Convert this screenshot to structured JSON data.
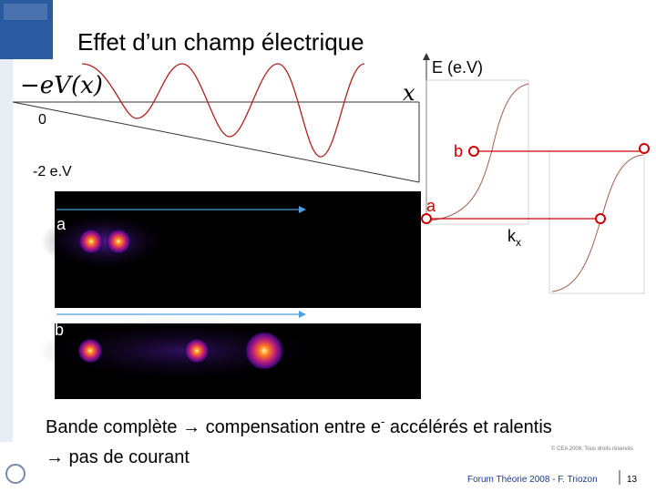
{
  "slide": {
    "title": "Effet d’un champ électrique",
    "potential_label": "−eV(x)",
    "x_label": "x",
    "zero_label": "0",
    "minus_label": "-2 e.V",
    "energy_label": "E (e.V)",
    "point_b": "b",
    "point_a": "a",
    "k_label": "k",
    "k_sub": "x",
    "image_a": "a",
    "image_b": "b",
    "line1_parts": [
      "Bande complète ",
      "→",
      " compensation entre e",
      "-",
      " accélérés et ralentis"
    ],
    "line2_parts": [
      "→",
      " pas de courant"
    ],
    "copyright": "© CEA 2008. Tous droits réservés",
    "footer": "Forum Théorie 2008 - F. Triozon",
    "page": "13"
  }
}
